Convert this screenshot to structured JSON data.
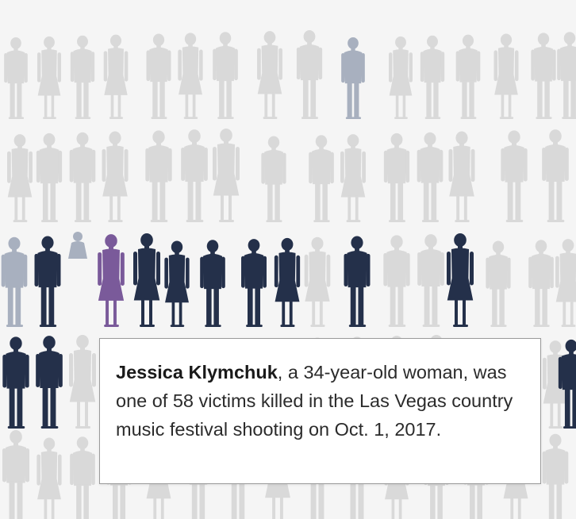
{
  "tooltip": {
    "name": "Jessica Klymchuk",
    "text": ", a 34-year-old woman, was one of 58 victims killed in the Las Vegas country music festival shooting on Oct. 1, 2017."
  },
  "colors": {
    "background": "#f5f5f5",
    "silhouette_default": "#d9d9d9",
    "silhouette_highlight": "#a8b0bf",
    "silhouette_victim": "#24304a",
    "silhouette_selected": "#7a5a9a",
    "tooltip_border": "#9a9a9a"
  },
  "crowd": {
    "row_count": 5,
    "columns_per_row": 17,
    "victims_row": 3,
    "selected_figure": "Jessica Klymchuk"
  }
}
